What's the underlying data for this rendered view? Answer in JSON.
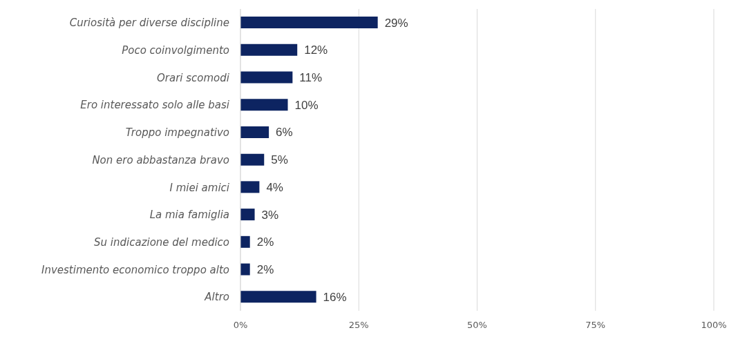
{
  "chart_data": {
    "type": "bar",
    "orientation": "horizontal",
    "categories": [
      "Curiosità per diverse discipline",
      "Poco coinvolgimento",
      "Orari scomodi",
      "Ero interessato solo alle basi",
      "Troppo impegnativo",
      "Non ero abbastanza bravo",
      "I miei amici",
      "La mia famiglia",
      "Su indicazione del medico",
      "Investimento economico troppo alto",
      "Altro"
    ],
    "values": [
      29,
      12,
      11,
      10,
      6,
      5,
      4,
      3,
      2,
      2,
      16
    ],
    "value_labels": [
      "29%",
      "12%",
      "11%",
      "10%",
      "6%",
      "5%",
      "4%",
      "3%",
      "2%",
      "2%",
      "16%"
    ],
    "color": "#0d2461",
    "xlim": [
      0,
      100
    ],
    "xticks": [
      {
        "value": 0,
        "label": "0%"
      },
      {
        "value": 25,
        "label": "25%"
      },
      {
        "value": 50,
        "label": "50%"
      },
      {
        "value": 75,
        "label": "75%"
      },
      {
        "value": 100,
        "label": "100%"
      }
    ],
    "grid": "x",
    "legend": false
  }
}
